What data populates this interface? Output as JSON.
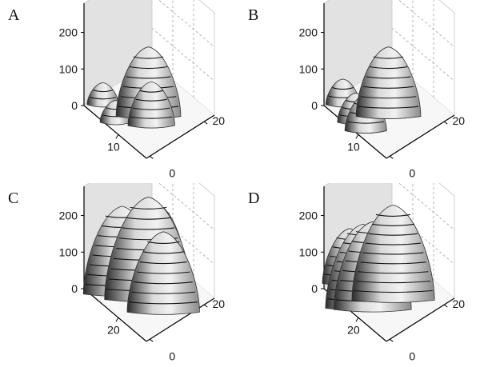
{
  "chart_data": [
    {
      "type": "surface3d",
      "panel_label": "A",
      "z_ticks": [
        "200",
        "100",
        "0"
      ],
      "x_ticks": [
        "10"
      ],
      "y_ticks": [
        "20",
        "0"
      ],
      "peaks": [
        {
          "x": 5,
          "y": 3,
          "height": 60
        },
        {
          "x": 3,
          "y": 10,
          "height": 60
        },
        {
          "x": 12,
          "y": 10,
          "height": 80
        },
        {
          "x": 11,
          "y": 17,
          "height": 120
        },
        {
          "x": 13,
          "y": 14,
          "height": 190
        }
      ]
    },
    {
      "type": "surface3d",
      "panel_label": "B",
      "z_ticks": [
        "200",
        "100",
        "0"
      ],
      "x_ticks": [
        "10"
      ],
      "y_ticks": [
        "20",
        "0"
      ],
      "peaks": [
        {
          "x": 5,
          "y": 3,
          "height": 70
        },
        {
          "x": 3,
          "y": 10,
          "height": 80
        },
        {
          "x": 3,
          "y": 14,
          "height": 100
        },
        {
          "x": 13,
          "y": 14,
          "height": 190
        }
      ]
    },
    {
      "type": "surface3d",
      "panel_label": "C",
      "z_ticks": [
        "200",
        "100",
        "0"
      ],
      "x_ticks": [
        "20"
      ],
      "y_ticks": [
        "20",
        "0"
      ],
      "peaks": [
        {
          "x": 8,
          "y": 3,
          "height": 90
        },
        {
          "x": 8,
          "y": 8,
          "height": 240
        },
        {
          "x": 20,
          "y": 6,
          "height": 120
        },
        {
          "x": 26,
          "y": 5,
          "height": 160
        },
        {
          "x": 13,
          "y": 14,
          "height": 280
        },
        {
          "x": 13,
          "y": 20,
          "height": 220
        }
      ]
    },
    {
      "type": "surface3d",
      "panel_label": "D",
      "z_ticks": [
        "200",
        "100",
        "0"
      ],
      "x_ticks": [
        "20"
      ],
      "y_ticks": [
        "20",
        "0"
      ],
      "peaks": [
        {
          "x": 8,
          "y": 3,
          "height": 150
        },
        {
          "x": 4,
          "y": 12,
          "height": 230
        },
        {
          "x": 6,
          "y": 14,
          "height": 240
        },
        {
          "x": 26,
          "y": 6,
          "height": 120
        },
        {
          "x": 18,
          "y": 12,
          "height": 210
        },
        {
          "x": 14,
          "y": 15,
          "height": 260
        }
      ]
    }
  ]
}
